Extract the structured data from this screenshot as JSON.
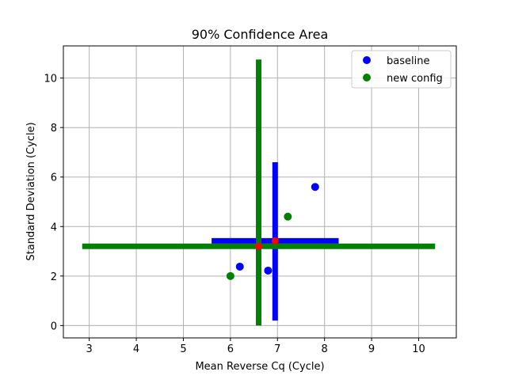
{
  "chart_data": {
    "type": "scatter",
    "title": "90% Confidence Area",
    "xlabel": "Mean Reverse Cq (Cycle)",
    "ylabel": "Standard Deviation (Cycle)",
    "xlim": [
      2.45,
      10.8
    ],
    "ylim": [
      -0.5,
      11.3
    ],
    "xticks": [
      3,
      4,
      5,
      6,
      7,
      8,
      9,
      10
    ],
    "yticks": [
      0,
      2,
      4,
      6,
      8,
      10
    ],
    "grid": true,
    "legend_position": "upper right",
    "series": [
      {
        "name": "baseline",
        "color": "#0000ff",
        "points": [
          {
            "x": 6.2,
            "y": 2.38
          },
          {
            "x": 6.8,
            "y": 2.22
          },
          {
            "x": 7.8,
            "y": 5.6
          }
        ],
        "center": {
          "x": 6.95,
          "y": 3.42
        },
        "interval_x": [
          5.6,
          8.3
        ],
        "interval_y": [
          0.2,
          6.6
        ]
      },
      {
        "name": "new config",
        "color": "#008000",
        "points": [
          {
            "x": 6.0,
            "y": 2.0
          },
          {
            "x": 7.22,
            "y": 4.4
          }
        ],
        "center": {
          "x": 6.6,
          "y": 3.2
        },
        "interval_x": [
          2.85,
          10.35
        ],
        "interval_y": [
          0.0,
          10.75
        ]
      }
    ],
    "center_marker_color": "#ff0000"
  }
}
